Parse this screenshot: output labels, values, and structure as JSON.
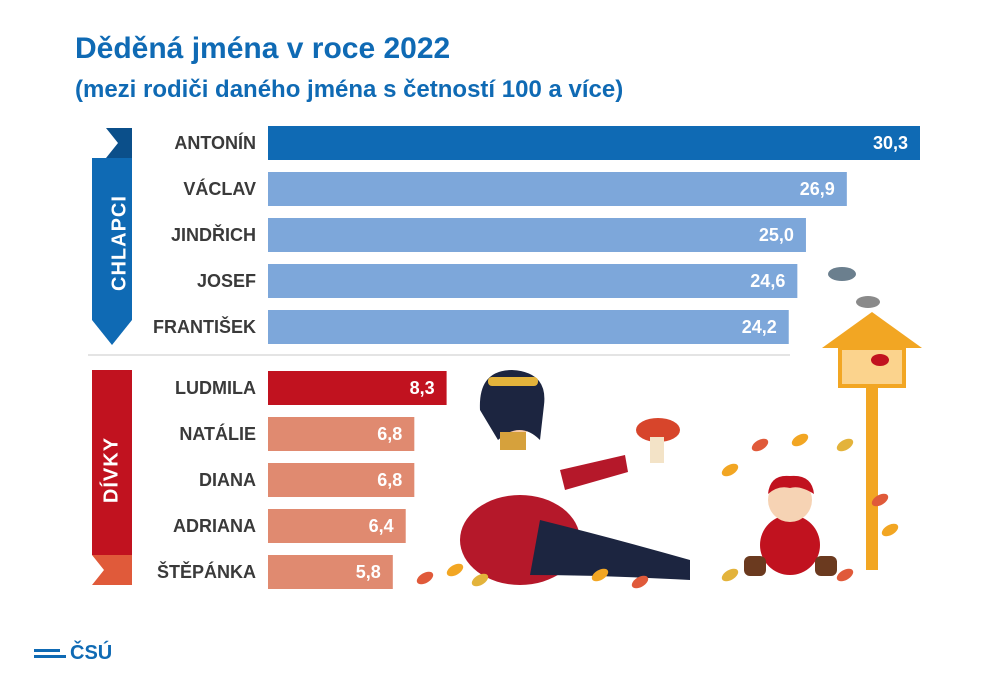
{
  "title": "Děděná jména v roce 2022",
  "subtitle": "(mezi rodiči daného jména s četností 100 a více)",
  "logo_text": "ČSÚ",
  "colors": {
    "title": "#0f6ab4",
    "boys_highlight": "#0f6ab4",
    "boys_bar": "#7da7da",
    "girls_highlight": "#c1121f",
    "girls_bar": "#e08a70"
  },
  "chart_data": {
    "type": "bar",
    "orientation": "horizontal",
    "title": "Děděná jména v roce 2022",
    "subtitle": "(mezi rodiči daného jména s četností 100 a více)",
    "groups": [
      {
        "name": "CHLAPCI",
        "categories": [
          "ANTONÍN",
          "VÁCLAV",
          "JINDŘICH",
          "JOSEF",
          "FRANTIŠEK"
        ],
        "values": [
          30.3,
          26.9,
          25.0,
          24.6,
          24.2
        ],
        "value_labels": [
          "30,3",
          "26,9",
          "25,0",
          "24,6",
          "24,2"
        ]
      },
      {
        "name": "DÍVKY",
        "categories": [
          "LUDMILA",
          "NATÁLIE",
          "DIANA",
          "ADRIANA",
          "ŠTĚPÁNKA"
        ],
        "values": [
          8.3,
          6.8,
          6.8,
          6.4,
          5.8
        ],
        "value_labels": [
          "8,3",
          "6,8",
          "6,8",
          "6,4",
          "5,8"
        ]
      }
    ],
    "grid": false,
    "legend": "none"
  }
}
